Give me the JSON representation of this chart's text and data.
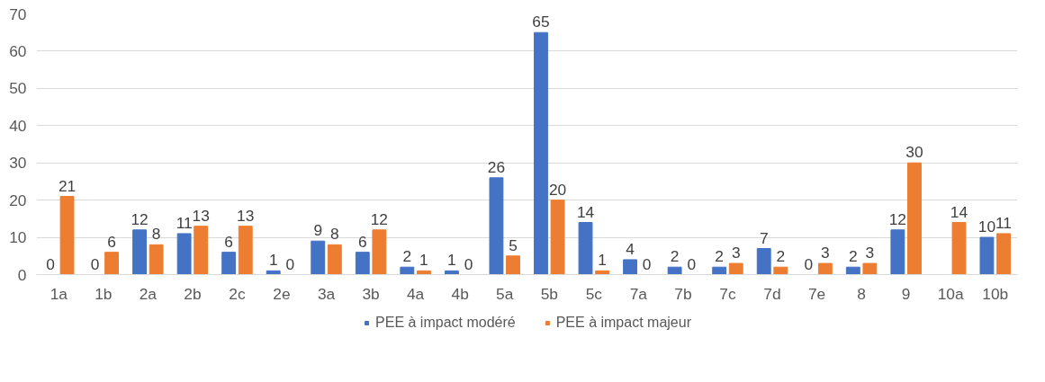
{
  "chart_data": {
    "type": "bar",
    "categories": [
      "1a",
      "1b",
      "2a",
      "2b",
      "2c",
      "2e",
      "3a",
      "3b",
      "4a",
      "4b",
      "5a",
      "5b",
      "5c",
      "7a",
      "7b",
      "7c",
      "7d",
      "7e",
      "8",
      "9",
      "10a",
      "10b"
    ],
    "series": [
      {
        "name": "PEE à impact modéré",
        "color": "#4472c4",
        "values": [
          0,
          0,
          12,
          11,
          6,
          1,
          9,
          6,
          2,
          1,
          26,
          65,
          14,
          4,
          2,
          2,
          7,
          0,
          2,
          12,
          0,
          10
        ],
        "value_labels": [
          "0",
          "0",
          "12",
          "11",
          "6",
          "1",
          "9",
          "6",
          "2",
          "1",
          "26",
          "65",
          "14",
          "4",
          "2",
          "2",
          "7",
          "0",
          "2",
          "12",
          null,
          "10"
        ]
      },
      {
        "name": "PEE à impact majeur",
        "color": "#ed7d31",
        "values": [
          21,
          6,
          8,
          13,
          13,
          0,
          8,
          12,
          1,
          0,
          5,
          20,
          1,
          0,
          0,
          3,
          2,
          3,
          3,
          30,
          14,
          11
        ],
        "value_labels": [
          "21",
          "6",
          "8",
          "13",
          "13",
          "0",
          "8",
          "12",
          "1",
          "0",
          "5",
          "20",
          "1",
          "0",
          "0",
          "3",
          "2",
          "3",
          "3",
          "30",
          "14",
          "11"
        ]
      }
    ],
    "ylim": [
      0,
      70
    ],
    "yticks": [
      0,
      10,
      20,
      30,
      40,
      50,
      60,
      70
    ],
    "grid": "y",
    "legend": "bottom"
  }
}
